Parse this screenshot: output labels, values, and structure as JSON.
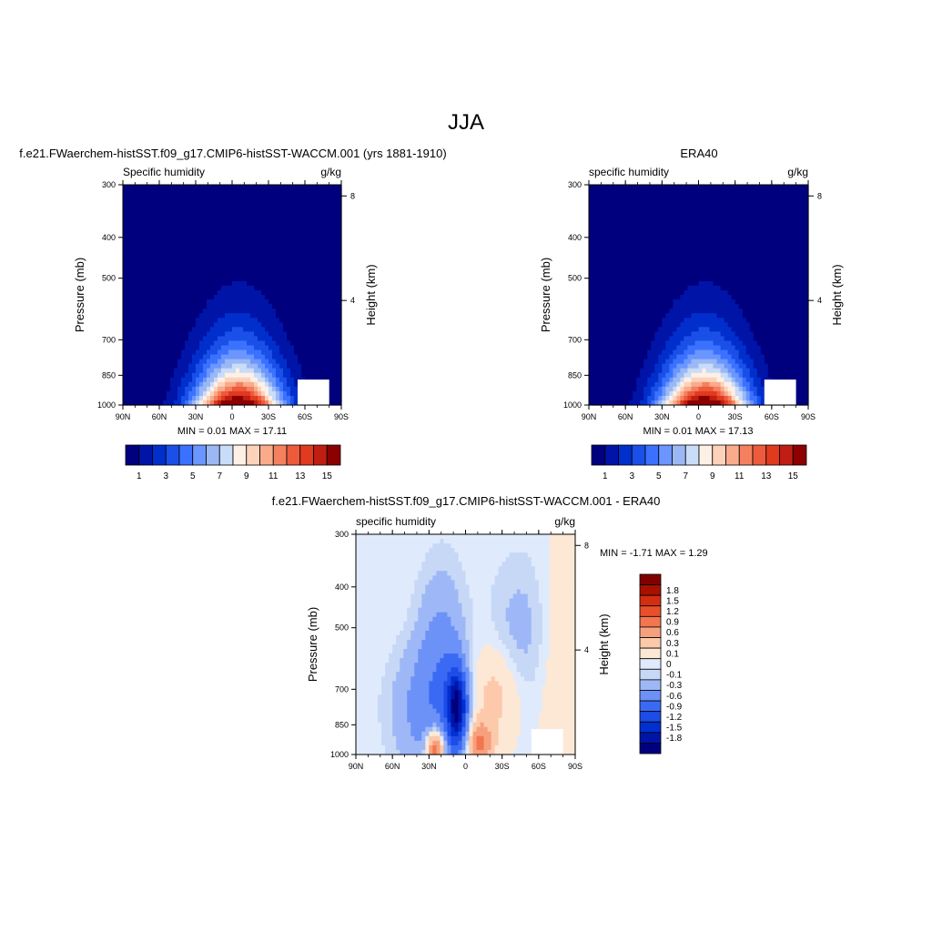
{
  "figure_title": "JJA",
  "colors": {
    "model_palette": [
      "#00007f",
      "#0014a8",
      "#002fcc",
      "#1a4fe8",
      "#3a72ff",
      "#6b96ff",
      "#9bb8f5",
      "#c9dcf8",
      "#fff0e6",
      "#fcd2bb",
      "#f9ab8c",
      "#f5805f",
      "#ee5a3c",
      "#e03a1f",
      "#c01e12",
      "#8c0000"
    ],
    "diff_palette": [
      "#00007f",
      "#0014a8",
      "#0030d0",
      "#1e4ce6",
      "#3a6af4",
      "#6d92f7",
      "#9eb8f7",
      "#c6d8f6",
      "#dfeafc",
      "#fde8d6",
      "#fcc9ab",
      "#f7a07e",
      "#f2764f",
      "#e8502b",
      "#d22e12",
      "#a81000",
      "#800000"
    ]
  },
  "chart_data": [
    {
      "id": "model",
      "type": "heatmap",
      "title": "f.e21.FWaerchem-histSST.f09_g17.CMIP6-histSST-WACCM.001 (yrs 1881-1910)",
      "left_label": "Specific humidity",
      "right_label": "g/kg",
      "ylabel": "Pressure (mb)",
      "y2label": "Height (km)",
      "x_ticks": [
        "90N",
        "60N",
        "30N",
        "0",
        "30S",
        "60S",
        "90S"
      ],
      "y_ticks": [
        "300",
        "400",
        "500",
        "700",
        "850",
        "1000"
      ],
      "y_tick_values": [
        300,
        400,
        500,
        700,
        850,
        1000
      ],
      "y2_ticks": [
        "8",
        "4"
      ],
      "y2_tick_values": [
        8,
        4
      ],
      "stats_text": "MIN =   0.01  MAX =  17.11",
      "colorbar_labels": [
        "1",
        "3",
        "5",
        "7",
        "9",
        "11",
        "13",
        "15"
      ],
      "levels": [
        1,
        2,
        3,
        4,
        5,
        6,
        7,
        8,
        9,
        10,
        11,
        12,
        13,
        14,
        15
      ],
      "peak_lat": -5,
      "peak_value": 17.11,
      "min_value": 0.01
    },
    {
      "id": "obs",
      "type": "heatmap",
      "title": "ERA40",
      "left_label": "specific humidity",
      "right_label": "g/kg",
      "ylabel": "Pressure (mb)",
      "y2label": "Height (km)",
      "x_ticks": [
        "90N",
        "60N",
        "30N",
        "0",
        "30S",
        "60S",
        "90S"
      ],
      "y_ticks": [
        "300",
        "400",
        "500",
        "700",
        "850",
        "1000"
      ],
      "y_tick_values": [
        300,
        400,
        500,
        700,
        850,
        1000
      ],
      "y2_ticks": [
        "8",
        "4"
      ],
      "y2_tick_values": [
        8,
        4
      ],
      "stats_text": "MIN =   0.01  MAX =  17.13",
      "colorbar_labels": [
        "1",
        "3",
        "5",
        "7",
        "9",
        "11",
        "13",
        "15"
      ],
      "levels": [
        1,
        2,
        3,
        4,
        5,
        6,
        7,
        8,
        9,
        10,
        11,
        12,
        13,
        14,
        15
      ],
      "peak_lat": -5,
      "peak_value": 17.13,
      "min_value": 0.01
    },
    {
      "id": "diff",
      "type": "heatmap",
      "title": "f.e21.FWaerchem-histSST.f09_g17.CMIP6-histSST-WACCM.001 - ERA40",
      "left_label": "specific humidity",
      "right_label": "g/kg",
      "ylabel": "Pressure (mb)",
      "y2label": "Height (km)",
      "x_ticks": [
        "90N",
        "60N",
        "30N",
        "0",
        "30S",
        "60S",
        "90S"
      ],
      "y_ticks": [
        "300",
        "400",
        "500",
        "700",
        "850",
        "1000"
      ],
      "y_tick_values": [
        300,
        400,
        500,
        700,
        850,
        1000
      ],
      "y2_ticks": [
        "8",
        "4"
      ],
      "y2_tick_values": [
        8,
        4
      ],
      "stats_text": "MIN =  -1.71  MAX =   1.29",
      "colorbar_labels": [
        "1.8",
        "1.5",
        "1.2",
        "0.9",
        "0.6",
        "0.3",
        "0.1",
        "0",
        "-0.1",
        "-0.3",
        "-0.6",
        "-0.9",
        "-1.2",
        "-1.5",
        "-1.8"
      ],
      "levels": [
        -1.8,
        -1.5,
        -1.2,
        -0.9,
        -0.6,
        -0.3,
        -0.1,
        0,
        0.1,
        0.3,
        0.6,
        0.9,
        1.2,
        1.5,
        1.8
      ],
      "min_value": -1.71,
      "max_value": 1.29
    }
  ]
}
